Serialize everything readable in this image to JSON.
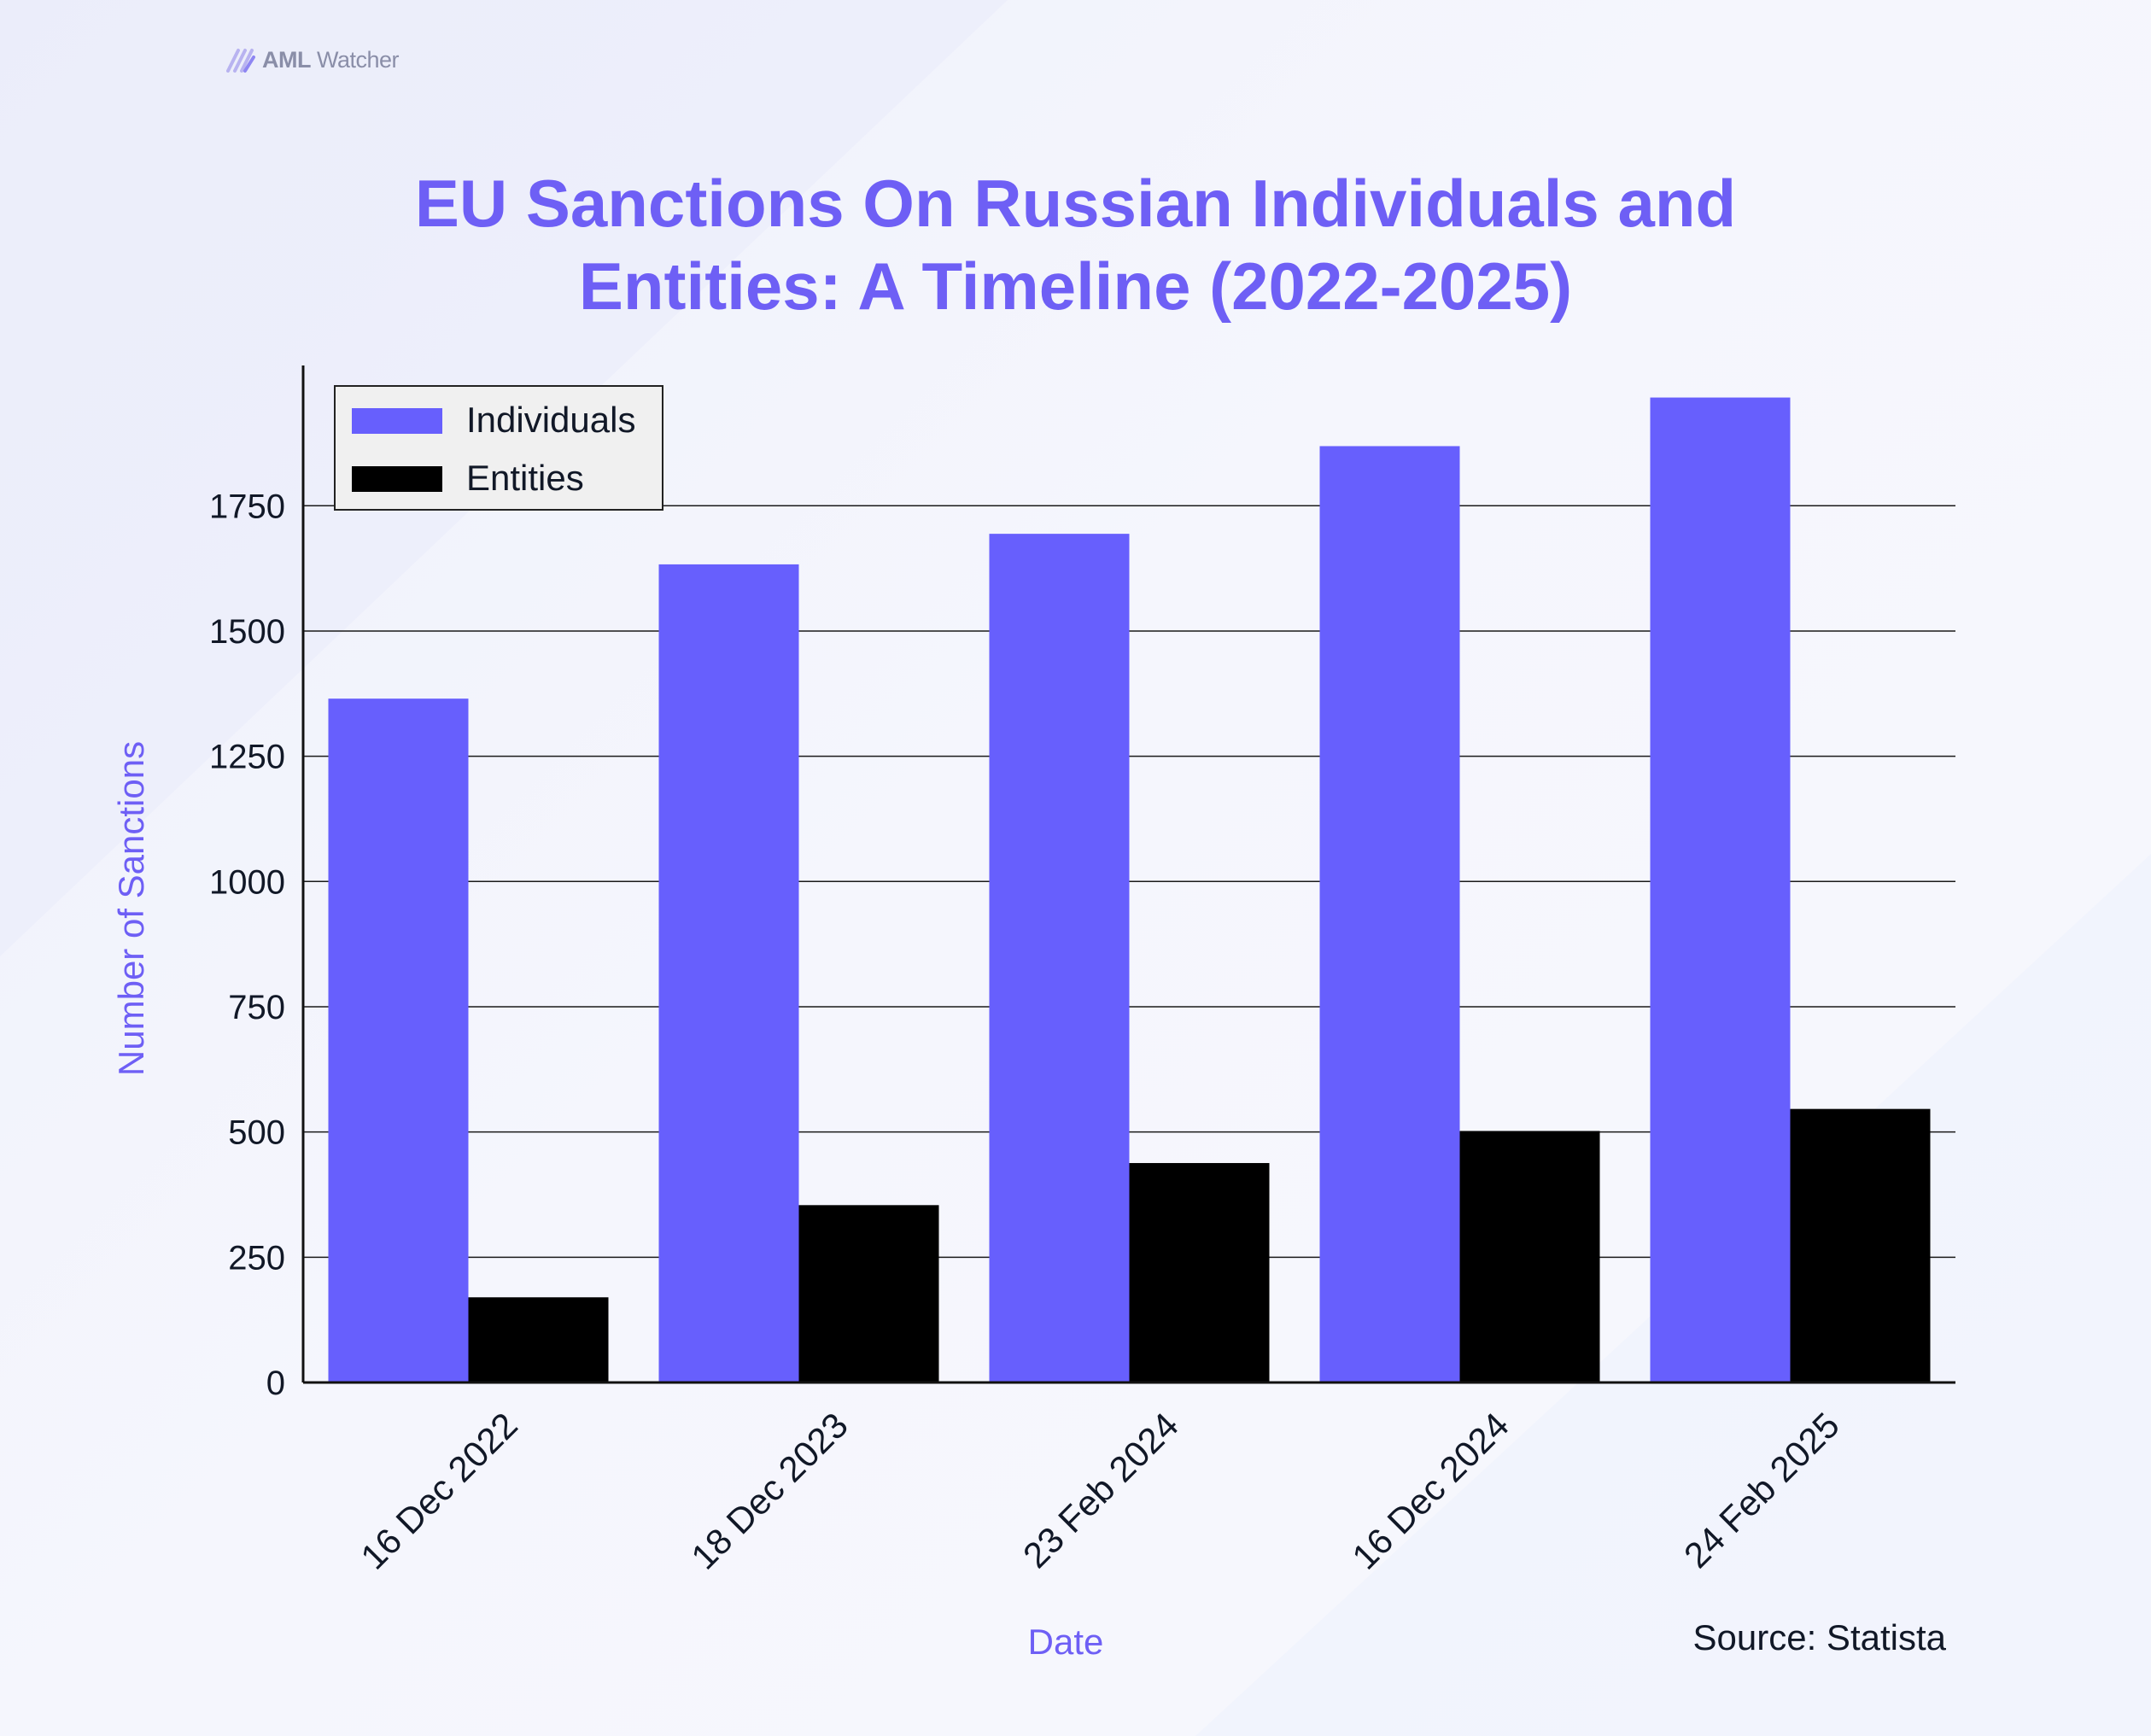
{
  "brand": {
    "strong": "AML",
    "rest": " Watcher"
  },
  "title_lines": [
    "EU Sanctions On Russian Individuals and",
    "Entities: A Timeline (2022-2025)"
  ],
  "source": "Source: Statista",
  "colors": {
    "individuals": "#675ffd",
    "entities": "#000000",
    "title": "#6e5ff5",
    "axis_label": "#6e5ff5",
    "text": "#111827"
  },
  "chart_data": {
    "type": "bar",
    "title": "EU Sanctions On Russian Individuals and Entities: A Timeline (2022-2025)",
    "xlabel": "Date",
    "ylabel": "Number of Sanctions",
    "categories": [
      "16 Dec 2022",
      "18 Dec 2023",
      "23 Feb 2024",
      "16 Dec 2024",
      "24 Feb 2025"
    ],
    "series": [
      {
        "name": "Individuals",
        "values": [
          1365,
          1633,
          1694,
          1869,
          1966
        ]
      },
      {
        "name": "Entities",
        "values": [
          170,
          354,
          438,
          502,
          546
        ]
      }
    ],
    "ylim": [
      0,
      2030
    ],
    "yticks": [
      0,
      250,
      500,
      750,
      1000,
      1250,
      1500,
      1750
    ],
    "ytick_labels": [
      "0",
      "250",
      "500",
      "750",
      "1000",
      "1250",
      "1500",
      "1750"
    ],
    "grid": "horizontal",
    "legend": "top-left"
  }
}
